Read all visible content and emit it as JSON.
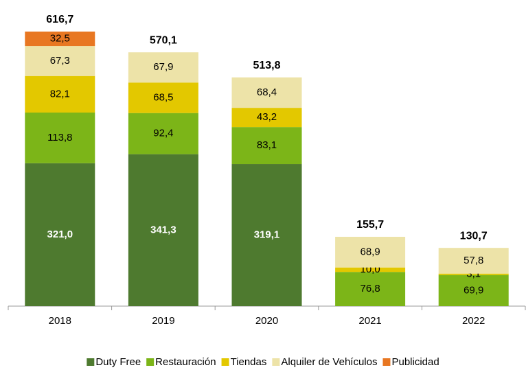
{
  "chart_data": {
    "type": "stacked_bar",
    "categories": [
      "2018",
      "2019",
      "2020",
      "2021",
      "2022"
    ],
    "series": [
      {
        "name": "Duty Free",
        "color": "#4e7a2f",
        "values": [
          321.0,
          341.3,
          319.1,
          null,
          null
        ],
        "value_labels": [
          "321,0",
          "341,3",
          "319,1",
          null,
          null
        ]
      },
      {
        "name": "Restauración",
        "color": "#7cb518",
        "values": [
          113.8,
          92.4,
          83.1,
          76.8,
          69.9
        ],
        "value_labels": [
          "113,8",
          "92,4",
          "83,1",
          "76,8",
          "69,9"
        ]
      },
      {
        "name": "Tiendas",
        "color": "#e3c800",
        "values": [
          82.1,
          68.5,
          43.2,
          10.0,
          3.1
        ],
        "value_labels": [
          "82,1",
          "68,5",
          "43,2",
          "10,0",
          "3,1"
        ]
      },
      {
        "name": "Alquiler de Vehículos",
        "color": "#ede3a8",
        "values": [
          67.3,
          67.9,
          68.4,
          68.9,
          57.8
        ],
        "value_labels": [
          "67,3",
          "67,9",
          "68,4",
          "68,9",
          "57,8"
        ]
      },
      {
        "name": "Publicidad",
        "color": "#e87722",
        "values": [
          32.5,
          null,
          null,
          null,
          null
        ],
        "value_labels": [
          "32,5",
          null,
          null,
          null,
          null
        ]
      }
    ],
    "totals": {
      "values": [
        616.7,
        570.1,
        513.8,
        155.7,
        130.7
      ],
      "value_labels": [
        "616,7",
        "570,1",
        "513,8",
        "155,7",
        "130,7"
      ]
    },
    "legend": "bottom"
  }
}
